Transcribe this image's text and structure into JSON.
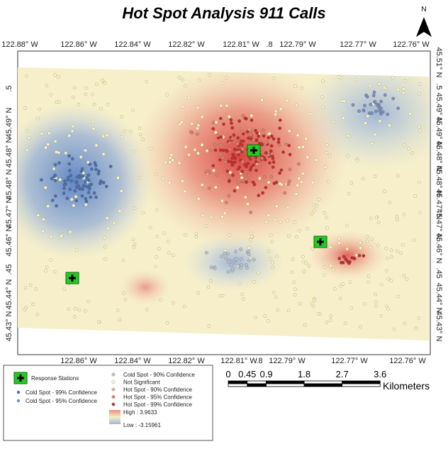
{
  "title": "Hot Spot Analysis 911 Calls",
  "north": "N",
  "top_labels": [
    "122.88° W",
    "122.86° W",
    "122.84° W",
    "122.82° W",
    "122.81° W",
    ".8",
    "122.79° W",
    "122.77° W",
    "122.76° W"
  ],
  "bottom_labels": [
    "122.86° W",
    "122.84° W",
    "122.82° W",
    "122.81° W",
    ".8",
    "122.79° W",
    "122.77° W",
    "122.76° W"
  ],
  "left_labels": [
    ".5",
    "45.49° N",
    "45.48° N",
    "45.48° N",
    "45.47° N",
    "45.46° N",
    ".45",
    "45.44° N",
    "45.43° N"
  ],
  "right_labels": [
    "45.51° N",
    ".5",
    "45.49° N",
    "45.49° N",
    "45.48° N",
    "45.48° N",
    "45.47° N",
    "45.47° N",
    "45.46° N",
    ".45",
    "45.44° N",
    "45.43° N"
  ],
  "legend": {
    "stations": "Response Stations",
    "left": [
      "Cold Spot - 99% Confidence",
      "Cold Spot - 95% Confidence"
    ],
    "right": [
      "Cold Spot - 90% Confidence",
      "Not Significant",
      "Hot Spot - 90% Confidence",
      "Hot Spot - 95% Confidence",
      "Hot Spot - 99% Confidence"
    ],
    "high": "High : 3.9633",
    "low": "Low : -3.15961"
  },
  "scale": {
    "labels": [
      "0",
      "0.45",
      "0.9",
      "1.8",
      "2.7",
      "3.6"
    ],
    "unit": "Kilometers"
  }
}
